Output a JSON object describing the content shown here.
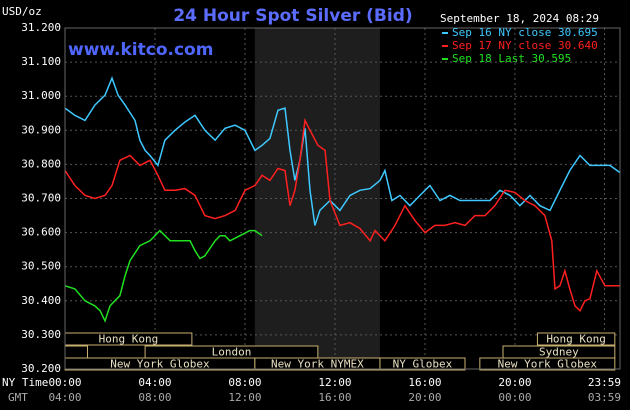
{
  "chart_data": {
    "type": "line",
    "title": "24 Hour Spot Silver (Bid)",
    "unit": "USD/oz",
    "timestamp": "September 18, 2024 08:29",
    "watermark": "www.kitco.com",
    "x_row_labels": [
      "NY Time",
      "GMT"
    ],
    "xlim": [
      0,
      24.67
    ],
    "ylim": [
      30.2,
      31.2
    ],
    "xticks": [
      {
        "value": 0,
        "label": "00:00"
      },
      {
        "value": 4,
        "label": "04:00"
      },
      {
        "value": 8,
        "label": "08:00"
      },
      {
        "value": 12,
        "label": "12:00"
      },
      {
        "value": 16,
        "label": "16:00"
      },
      {
        "value": 20,
        "label": "20:00"
      },
      {
        "value": 23.98,
        "label": "23:59"
      }
    ],
    "gmt_labels": [
      "04:00",
      "08:00",
      "12:00",
      "16:00",
      "20:00",
      "00:00",
      "03:59"
    ],
    "yticks": [
      {
        "value": 30.2,
        "label": "30.200"
      },
      {
        "value": 30.3,
        "label": "30.300"
      },
      {
        "value": 30.4,
        "label": "30.400"
      },
      {
        "value": 30.5,
        "label": "30.500"
      },
      {
        "value": 30.6,
        "label": "30.600"
      },
      {
        "value": 30.7,
        "label": "30.700"
      },
      {
        "value": 30.8,
        "label": "30.800"
      },
      {
        "value": 30.9,
        "label": "30.900"
      },
      {
        "value": 31.0,
        "label": "31.000"
      },
      {
        "value": 31.1,
        "label": "31.100"
      },
      {
        "value": 31.2,
        "label": "31.200"
      }
    ],
    "grid": true,
    "series": [
      {
        "name": "Sep 16 NY close 30.695",
        "color": "#3ec8ff",
        "x": [
          0,
          0.44,
          0.89,
          1.33,
          1.78,
          2.09,
          2.36,
          2.67,
          3.11,
          3.33,
          3.56,
          3.78,
          4.13,
          4.44,
          4.89,
          5.33,
          5.78,
          6.22,
          6.67,
          7.11,
          7.56,
          8,
          8.44,
          8.76,
          9.11,
          9.47,
          9.78,
          10,
          10.22,
          10.44,
          10.67,
          10.89,
          11.11,
          11.33,
          11.78,
          12.22,
          12.67,
          13.11,
          13.56,
          14,
          14.22,
          14.53,
          14.89,
          15.33,
          15.78,
          16.22,
          16.67,
          17.11,
          17.56,
          18,
          18.44,
          18.89,
          19.33,
          19.78,
          20.22,
          20.67,
          21.11,
          21.56,
          22,
          22.44,
          22.89,
          23.33,
          23.78,
          24.22,
          24.67
        ],
        "values": [
          30.965,
          30.944,
          30.929,
          30.974,
          31.003,
          31.053,
          31.003,
          30.974,
          30.929,
          30.871,
          30.841,
          30.826,
          30.797,
          30.871,
          30.9,
          30.924,
          30.944,
          30.9,
          30.871,
          30.906,
          30.915,
          30.9,
          30.841,
          30.856,
          30.876,
          30.959,
          30.965,
          30.841,
          30.753,
          30.812,
          30.906,
          30.724,
          30.621,
          30.665,
          30.694,
          30.665,
          30.709,
          30.724,
          30.729,
          30.753,
          30.782,
          30.694,
          30.709,
          30.679,
          30.709,
          30.738,
          30.694,
          30.709,
          30.694,
          30.694,
          30.694,
          30.694,
          30.724,
          30.709,
          30.679,
          30.709,
          30.679,
          30.665,
          30.724,
          30.782,
          30.826,
          30.797,
          30.797,
          30.797,
          30.776
        ]
      },
      {
        "name": "Sep 17 NY close 30.640",
        "color": "#ff2020",
        "x": [
          0,
          0.44,
          0.89,
          1.33,
          1.78,
          2.09,
          2.44,
          2.89,
          3.33,
          3.78,
          4.13,
          4.44,
          4.89,
          5.33,
          5.78,
          6.22,
          6.67,
          7.11,
          7.56,
          8,
          8.44,
          8.76,
          9.11,
          9.47,
          9.78,
          10,
          10.22,
          10.44,
          10.67,
          10.89,
          11.24,
          11.56,
          11.78,
          12.22,
          12.67,
          13.11,
          13.56,
          13.78,
          14.22,
          14.67,
          15.11,
          15.56,
          16,
          16.44,
          16.89,
          17.33,
          17.78,
          18.22,
          18.67,
          19.11,
          19.56,
          20,
          20.44,
          20.89,
          21.33,
          21.64,
          21.78,
          22,
          22.22,
          22.44,
          22.67,
          22.89,
          23.11,
          23.33,
          23.64,
          24,
          24.22,
          24.67
        ],
        "values": [
          30.782,
          30.738,
          30.709,
          30.7,
          30.709,
          30.738,
          30.812,
          30.826,
          30.797,
          30.812,
          30.768,
          30.724,
          30.724,
          30.729,
          30.709,
          30.65,
          30.641,
          30.65,
          30.665,
          30.724,
          30.738,
          30.768,
          30.753,
          30.788,
          30.782,
          30.679,
          30.724,
          30.812,
          30.929,
          30.9,
          30.856,
          30.841,
          30.694,
          30.621,
          30.629,
          30.612,
          30.576,
          30.606,
          30.576,
          30.621,
          30.679,
          30.635,
          30.6,
          30.621,
          30.621,
          30.629,
          30.621,
          30.65,
          30.65,
          30.679,
          30.724,
          30.718,
          30.694,
          30.679,
          30.65,
          30.576,
          30.435,
          30.444,
          30.488,
          30.435,
          30.385,
          30.371,
          30.4,
          30.406,
          30.488,
          30.444,
          30.444,
          30.444
        ]
      },
      {
        "name": "Sep 18 Last 30.595",
        "color": "#20e020",
        "x": [
          0,
          0.44,
          0.89,
          1.33,
          1.56,
          1.78,
          2,
          2.22,
          2.44,
          2.67,
          2.89,
          3.33,
          3.78,
          4.22,
          4.67,
          5.11,
          5.56,
          5.78,
          6,
          6.22,
          6.67,
          6.89,
          7.11,
          7.33,
          7.78,
          8.22,
          8.44,
          8.76
        ],
        "values": [
          30.444,
          30.435,
          30.4,
          30.385,
          30.371,
          30.341,
          30.385,
          30.4,
          30.415,
          30.474,
          30.518,
          30.562,
          30.576,
          30.606,
          30.576,
          30.576,
          30.576,
          30.547,
          30.524,
          30.532,
          30.576,
          30.591,
          30.591,
          30.576,
          30.591,
          30.606,
          30.606,
          30.591
        ]
      }
    ],
    "sessions": [
      {
        "name": "Hong Kong",
        "start": 0,
        "end": 5.64
      },
      {
        "name": "Hong Kong",
        "start": 21,
        "end": 24.44
      },
      {
        "name": null,
        "start": 0,
        "end": 1.0
      },
      {
        "name": "London",
        "start": 3.56,
        "end": 11.24
      },
      {
        "name": "Sydney",
        "start": 19.47,
        "end": 24.44
      },
      {
        "name": "New York Globex",
        "start": 0,
        "end": 8.44
      },
      {
        "name": "New York NYMEX",
        "start": 8.44,
        "end": 14
      },
      {
        "name": "NY Globex",
        "start": 14,
        "end": 17.78
      },
      {
        "name": "New York Globex",
        "start": 18.44,
        "end": 24.44
      }
    ]
  }
}
